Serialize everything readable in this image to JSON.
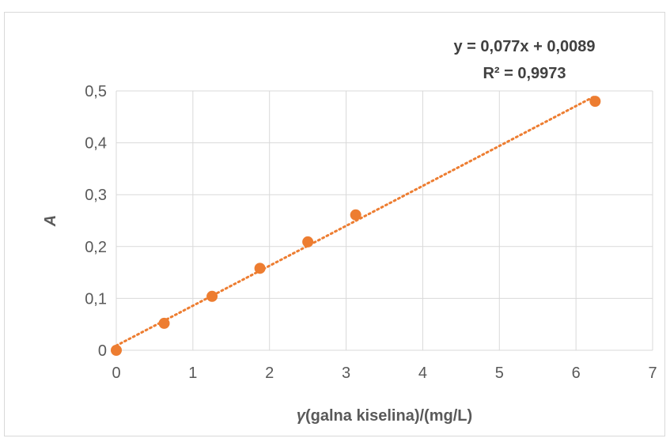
{
  "chart_data": {
    "type": "scatter",
    "title": "",
    "xlabel_symbol": "γ",
    "xlabel_rest": "(galna kiselina)/(mg/L)",
    "ylabel": "A",
    "xlim": [
      0,
      7
    ],
    "ylim": [
      0,
      0.5
    ],
    "x_ticks": [
      "0",
      "1",
      "2",
      "3",
      "4",
      "5",
      "6",
      "7"
    ],
    "y_ticks": [
      "0",
      "0,1",
      "0,2",
      "0,3",
      "0,4",
      "0,5"
    ],
    "grid": true,
    "legend": "none",
    "series": [
      {
        "x": [
          0,
          0.625,
          1.25,
          1.875,
          2.5,
          3.125,
          6.25
        ],
        "y": [
          0.0,
          0.052,
          0.104,
          0.158,
          0.209,
          0.261,
          0.48
        ],
        "color": "#ED7D31"
      }
    ],
    "trendline": {
      "type": "linear",
      "slope": 0.077,
      "intercept": 0.0089,
      "color": "#ED7D31",
      "style": "dotted"
    },
    "annotations": {
      "equation": "y = 0,077x + 0,0089",
      "r_squared": "R² = 0,9973"
    }
  }
}
